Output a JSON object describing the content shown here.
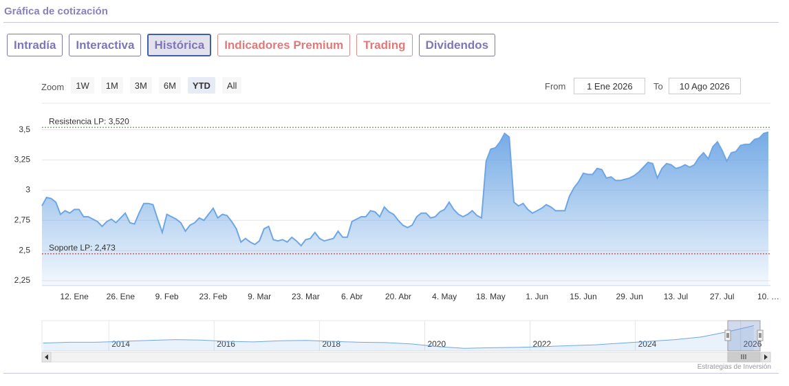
{
  "header": {
    "title": "Gráfica de cotización"
  },
  "tabs": [
    {
      "label": "Intradía",
      "style": "purple"
    },
    {
      "label": "Interactiva",
      "style": "purple"
    },
    {
      "label": "Histórica",
      "style": "purple",
      "active": true
    },
    {
      "label": "Indicadores Premium",
      "style": "red"
    },
    {
      "label": "Trading",
      "style": "red"
    },
    {
      "label": "Dividendos",
      "style": "purple"
    }
  ],
  "zoom": {
    "label": "Zoom",
    "buttons": [
      "1W",
      "1M",
      "3M",
      "6M",
      "YTD",
      "All"
    ],
    "selected": 4
  },
  "range": {
    "from_label": "From",
    "from": "1 Ene 2026",
    "to_label": "To",
    "to": "10 Ago 2026"
  },
  "chart_data": {
    "type": "area",
    "categories": [
      null,
      null,
      null,
      null,
      null,
      null,
      null,
      "12. Ene",
      null,
      null,
      null,
      null,
      null,
      null,
      null,
      null,
      null,
      "26. Ene",
      null,
      null,
      null,
      null,
      null,
      null,
      null,
      null,
      null,
      "9. Feb",
      null,
      null,
      null,
      null,
      null,
      null,
      null,
      null,
      null,
      "23. Feb",
      null,
      null,
      null,
      null,
      null,
      null,
      null,
      null,
      null,
      "9. Mar",
      null,
      null,
      null,
      null,
      null,
      null,
      null,
      null,
      null,
      "23. Mar",
      null,
      null,
      null,
      null,
      null,
      null,
      null,
      null,
      null,
      "6. Abr",
      null,
      null,
      null,
      null,
      null,
      null,
      null,
      null,
      null,
      "20. Abr",
      null,
      null,
      null,
      null,
      null,
      null,
      null,
      null,
      null,
      "4. May",
      null,
      null,
      null,
      null,
      null,
      null,
      null,
      null,
      null,
      "18. May",
      null,
      null,
      null,
      null,
      null,
      null,
      null,
      null,
      null,
      "1. Jun",
      null,
      null,
      null,
      null,
      null,
      null,
      null,
      null,
      null,
      "15. Jun",
      null,
      null,
      null,
      null,
      null,
      null,
      null,
      null,
      null,
      "29. Jun",
      null,
      null,
      null,
      null,
      null,
      null,
      null,
      null,
      null,
      "13. Jul",
      null,
      null,
      null,
      null,
      null,
      null,
      null,
      null,
      null,
      "27. Jul",
      null,
      null,
      null,
      null,
      null,
      null,
      null,
      null,
      null,
      "10. …"
    ],
    "values": [
      2.87,
      2.94,
      2.93,
      2.9,
      2.8,
      2.83,
      2.81,
      2.84,
      2.84,
      2.78,
      2.78,
      2.76,
      2.74,
      2.7,
      2.74,
      2.76,
      2.73,
      2.77,
      2.81,
      2.73,
      2.72,
      2.81,
      2.89,
      2.89,
      2.88,
      2.76,
      2.65,
      2.8,
      2.78,
      2.76,
      2.73,
      2.66,
      2.71,
      2.73,
      2.77,
      2.75,
      2.8,
      2.85,
      2.77,
      2.8,
      2.79,
      2.74,
      2.68,
      2.57,
      2.6,
      2.57,
      2.55,
      2.58,
      2.68,
      2.7,
      2.59,
      2.58,
      2.59,
      2.57,
      2.61,
      2.58,
      2.54,
      2.59,
      2.6,
      2.65,
      2.6,
      2.58,
      2.59,
      2.6,
      2.66,
      2.61,
      2.61,
      2.74,
      2.76,
      2.78,
      2.78,
      2.83,
      2.82,
      2.78,
      2.86,
      2.82,
      2.8,
      2.75,
      2.71,
      2.69,
      2.71,
      2.78,
      2.81,
      2.81,
      2.77,
      2.78,
      2.82,
      2.84,
      2.9,
      2.84,
      2.8,
      2.78,
      2.8,
      2.83,
      2.79,
      2.77,
      3.24,
      3.34,
      3.35,
      3.4,
      3.47,
      3.44,
      2.9,
      2.87,
      2.89,
      2.84,
      2.81,
      2.83,
      2.85,
      2.88,
      2.86,
      2.83,
      2.83,
      2.83,
      2.95,
      3.02,
      3.07,
      3.14,
      3.13,
      3.13,
      3.18,
      3.17,
      3.1,
      3.11,
      3.08,
      3.08,
      3.09,
      3.1,
      3.12,
      3.15,
      3.19,
      3.23,
      3.22,
      3.1,
      3.18,
      3.22,
      3.21,
      3.18,
      3.19,
      3.21,
      3.19,
      3.21,
      3.27,
      3.31,
      3.26,
      3.36,
      3.4,
      3.33,
      3.24,
      3.31,
      3.32,
      3.37,
      3.38,
      3.38,
      3.42,
      3.43,
      3.47,
      3.48
    ],
    "color": "#6ea6e4",
    "ylim": [
      2.21,
      3.72
    ],
    "yticks": [
      {
        "value": 2.25,
        "label": "2,25"
      },
      {
        "value": 2.5,
        "label": "2,5"
      },
      {
        "value": 2.75,
        "label": "2,75"
      },
      {
        "value": 3,
        "label": "3"
      },
      {
        "value": 3.25,
        "label": "3,25"
      },
      {
        "value": 3.5,
        "label": "3,5"
      }
    ],
    "grid": true,
    "plot_lines": [
      {
        "label": "Resistencia LP: 3,520",
        "value": 3.52,
        "color": "#2e7d32"
      },
      {
        "label": "Soporte LP: 2,473",
        "value": 2.473,
        "color": "#b71c1c"
      }
    ]
  },
  "navigator": {
    "x": [
      2012.75,
      2013.25,
      2013.75,
      2014.25,
      2014.75,
      2015.25,
      2015.75,
      2016.25,
      2016.75,
      2017.25,
      2017.75,
      2018.25,
      2018.75,
      2019.25,
      2019.75,
      2020.25,
      2020.75,
      2021.25,
      2021.75,
      2022.25,
      2022.75,
      2023.25,
      2023.75,
      2024.25,
      2024.75,
      2025.25,
      2025.75,
      2026.25
    ],
    "values": [
      2.35,
      2.4,
      2.4,
      2.45,
      2.5,
      2.55,
      2.52,
      2.45,
      2.42,
      2.48,
      2.5,
      2.45,
      2.4,
      2.38,
      2.3,
      2.15,
      2.05,
      2.08,
      2.1,
      2.15,
      2.2,
      2.25,
      2.35,
      2.45,
      2.55,
      2.7,
      3.0,
      3.35
    ],
    "xlim": [
      2012.73,
      2026.37
    ],
    "xticks": [
      2014,
      2016,
      2018,
      2020,
      2022,
      2024,
      2026
    ],
    "ylim": [
      1.9,
      3.64
    ]
  },
  "credit": "Estrategias de Inversión"
}
